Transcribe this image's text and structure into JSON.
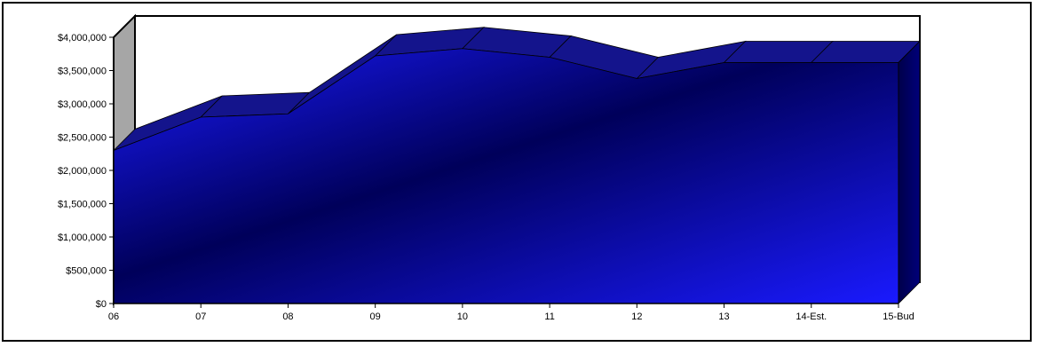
{
  "chart_data": {
    "type": "area",
    "title": "",
    "xlabel": "",
    "ylabel": "",
    "categories": [
      "06",
      "07",
      "08",
      "09",
      "10",
      "11",
      "12",
      "13",
      "14-Est.",
      "15-Bud"
    ],
    "series": [
      {
        "values": [
          2300000,
          2800000,
          2850000,
          3720000,
          3830000,
          3700000,
          3380000,
          3620000,
          3620000,
          3620000
        ]
      }
    ],
    "ylim": [
      0,
      4000000
    ],
    "yticks": [
      0,
      500000,
      1000000,
      1500000,
      2000000,
      2500000,
      3000000,
      3500000,
      4000000
    ],
    "ytick_labels": [
      "$0",
      "$500,000",
      "$1,000,000",
      "$1,500,000",
      "$2,000,000",
      "$2,500,000",
      "$3,000,000",
      "$3,500,000",
      "$4,000,000"
    ],
    "grid": false,
    "legend": "none",
    "style": "3d",
    "colors": {
      "area": "#1a1aff",
      "area_dark": "#00005a",
      "top": "#14148c",
      "back_wall": "#ffffff",
      "side_wall": "#a6a6a6"
    }
  }
}
